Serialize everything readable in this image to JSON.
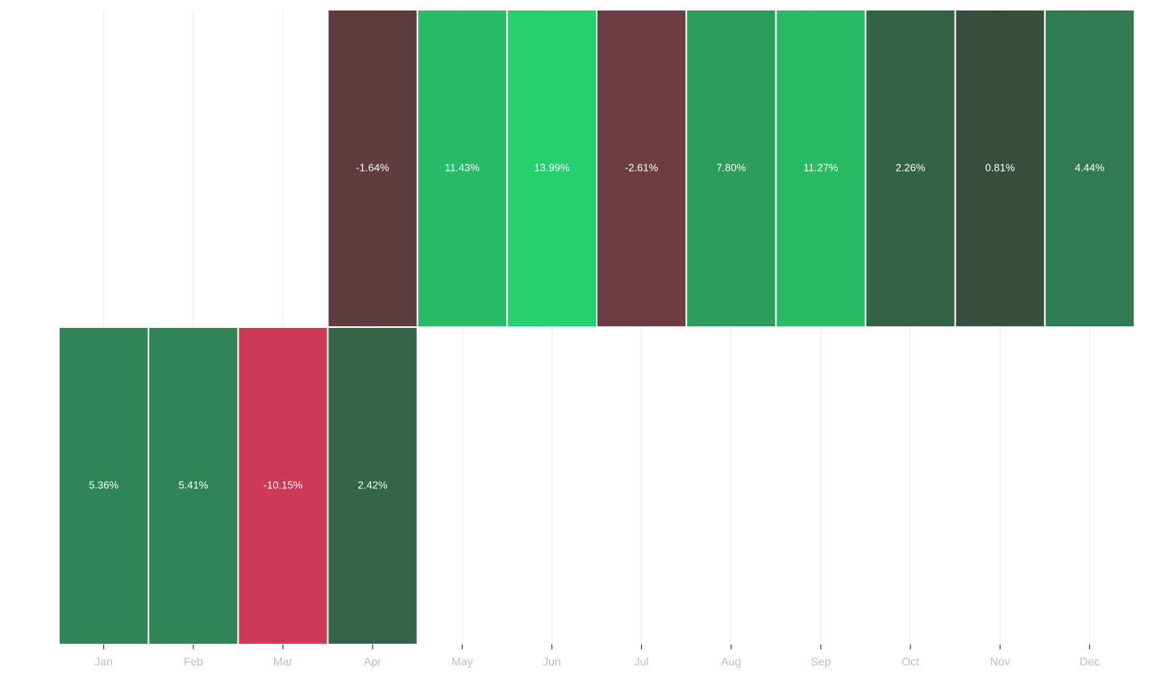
{
  "chart_data": {
    "type": "heatmap",
    "title": "",
    "xlabel": "",
    "ylabel": "",
    "x": [
      "Jan",
      "Feb",
      "Mar",
      "Apr",
      "May",
      "Jun",
      "Jul",
      "Aug",
      "Sep",
      "Oct",
      "Nov",
      "Dec"
    ],
    "grid": "vertical",
    "rows": [
      {
        "values": [
          null,
          null,
          null,
          -1.64,
          11.43,
          13.99,
          -2.61,
          7.8,
          11.27,
          2.26,
          0.81,
          4.44
        ],
        "labels": [
          "",
          "",
          "",
          "-1.64%",
          "11.43%",
          "13.99%",
          "-2.61%",
          "7.80%",
          "11.27%",
          "2.26%",
          "0.81%",
          "4.44%"
        ]
      },
      {
        "values": [
          5.36,
          5.41,
          -10.15,
          2.42,
          null,
          null,
          null,
          null,
          null,
          null,
          null,
          null
        ],
        "labels": [
          "5.36%",
          "5.41%",
          "-10.15%",
          "2.42%",
          "",
          "",
          "",
          "",
          "",
          "",
          "",
          ""
        ]
      }
    ],
    "colors": {
      "negative_strong": "#cc3a55",
      "neutral": "#383d3a",
      "positive_strong": "#26d06e",
      "gridline": "#ebebeb",
      "axis_tick": "#444444",
      "tick_label": "#bdbdbd"
    }
  }
}
